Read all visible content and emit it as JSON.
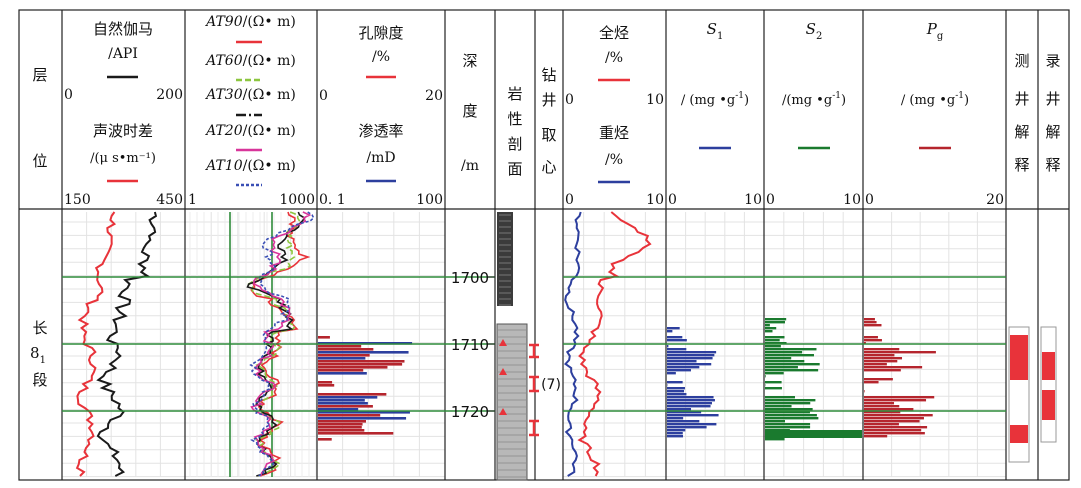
{
  "colors": {
    "red": "#e8333a",
    "black": "#1a1a1a",
    "green_light": "#8cc63f",
    "magenta": "#d8359a",
    "blue": "#2d3f9e",
    "blue_dash": "#3a4fb5",
    "dark_red": "#b5252d",
    "green_bar": "#1a7a2e",
    "marker_green": "#2e8b3a",
    "lith_dark": "#3b3b3b",
    "lith_gray": "#b8b8b8"
  },
  "header": {
    "layer": [
      "层",
      "位"
    ],
    "gamma": {
      "name": "自然伽马",
      "unit": "/API",
      "min": "0",
      "max": "200"
    },
    "sonic": {
      "name": "声波时差",
      "unit": "/(μ s•m⁻¹)",
      "min": "150",
      "max": "450"
    },
    "resistivity": {
      "curves": [
        {
          "name": "AT90",
          "unit": "/(Ω• m)",
          "legend_icon": "solid-red-line"
        },
        {
          "name": "AT60",
          "unit": "/(Ω• m)",
          "legend_icon": "dashed-green-line"
        },
        {
          "name": "AT30",
          "unit": "/(Ω• m)",
          "legend_icon": "black-line"
        },
        {
          "name": "AT20",
          "unit": "/(Ω• m)",
          "legend_icon": "magenta-line"
        },
        {
          "name": "AT10",
          "unit": "/(Ω• m)",
          "legend_icon": "dotted-blue-line"
        }
      ],
      "min": "1",
      "max": "1000"
    },
    "porosity": {
      "name": "孔隙度",
      "unit": "/%",
      "min": "0",
      "max": "20"
    },
    "permeability": {
      "name": "渗透率",
      "unit": "/mD",
      "min": "0. 1",
      "max": "100"
    },
    "depth": [
      "深",
      "度",
      "/m"
    ],
    "lithology": [
      "岩",
      "性",
      "剖",
      "面"
    ],
    "coring": [
      "钻",
      "井",
      "取",
      "心"
    ],
    "total_hc": {
      "name": "全烃",
      "unit": "/%",
      "min": "0",
      "max": "10"
    },
    "heavy_hc": {
      "name": "重烃",
      "unit": "/%",
      "min": "0",
      "max": "10"
    },
    "s1": {
      "sym": "S",
      "sub": "1",
      "unit": "/ (mg •g",
      "sup": "-1",
      "close": ")",
      "min": "0",
      "max": "10"
    },
    "s2": {
      "sym": "S",
      "sub": "2",
      "unit": "/(mg •g",
      "sup": "-1",
      "close": ")",
      "min": "0",
      "max": "10"
    },
    "pg": {
      "sym": "P",
      "sub": "g",
      "unit": "/ (mg •g",
      "sup": "-1",
      "close": ")",
      "min": "0",
      "max": "20"
    },
    "logging_interp": [
      "测",
      "井",
      "解",
      "释"
    ],
    "mudlog_interp": [
      "录",
      "井",
      "解",
      "释"
    ]
  },
  "zone_label": {
    "top": "长",
    "main": "8",
    "sub": "1",
    "bottom": "段"
  },
  "depth_ticks": [
    "1700",
    "1710",
    "1720"
  ],
  "core_label": "(7)"
}
